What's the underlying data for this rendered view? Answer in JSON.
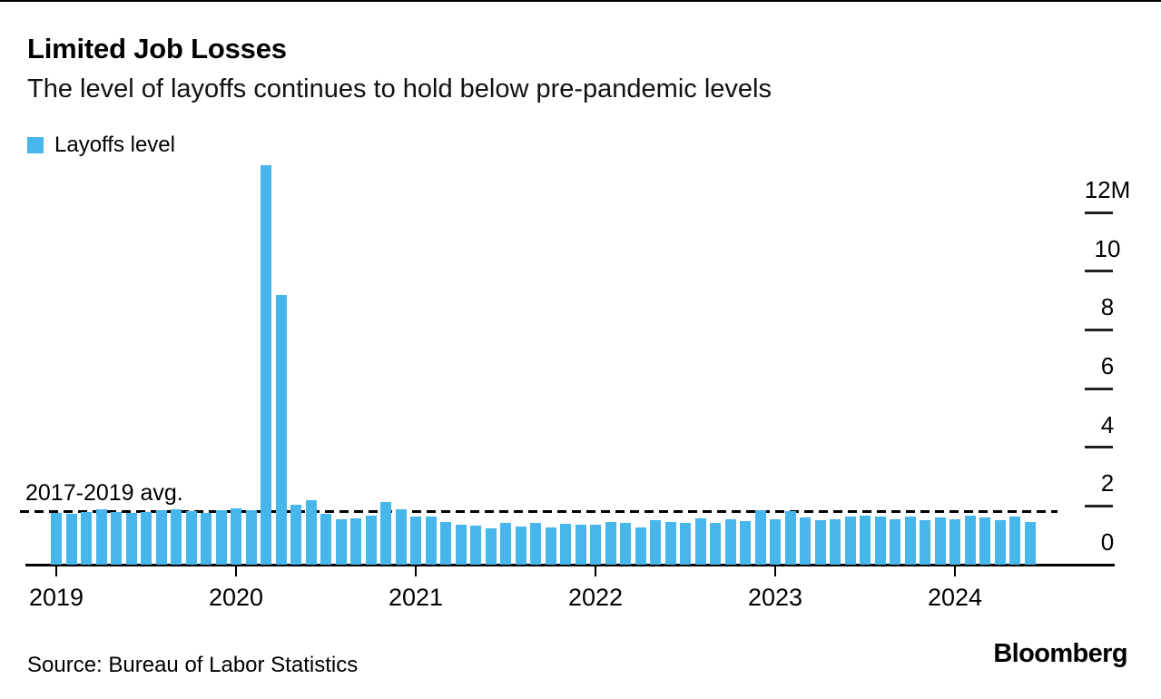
{
  "header": {
    "title": "Limited Job Losses",
    "subtitle": "The level of layoffs continues to hold below pre-pandemic levels"
  },
  "legend": {
    "label": "Layoffs level",
    "swatch_color": "#47b6ea"
  },
  "footer": {
    "source": "Source: Bureau of Labor Statistics",
    "brand": "Bloomberg"
  },
  "colors": {
    "bar": "#47b6ea",
    "axis": "#000000",
    "background": "#ffffff"
  },
  "chart_data": {
    "type": "bar",
    "title": "Limited Job Losses",
    "subtitle": "The level of layoffs continues to hold below pre-pandemic levels",
    "series_name": "Layoffs level",
    "unit": "millions of layoffs per month",
    "grid": false,
    "legend_position": "top-left",
    "ylim": [
      0,
      13.6
    ],
    "y_ticks": {
      "values": [
        12,
        10,
        8,
        6,
        4,
        2,
        0
      ],
      "labels": [
        "12M",
        "10",
        "8",
        "6",
        "4",
        "2",
        "0"
      ]
    },
    "x_ticks": [
      "2019",
      "2020",
      "2021",
      "2022",
      "2023",
      "2024"
    ],
    "avg_line": {
      "label": "2017-2019 avg.",
      "value": 1.8,
      "style": "dashed"
    },
    "categories": [
      "2019-01",
      "2019-02",
      "2019-03",
      "2019-04",
      "2019-05",
      "2019-06",
      "2019-07",
      "2019-08",
      "2019-09",
      "2019-10",
      "2019-11",
      "2019-12",
      "2020-01",
      "2020-02",
      "2020-03",
      "2020-04",
      "2020-05",
      "2020-06",
      "2020-07",
      "2020-08",
      "2020-09",
      "2020-10",
      "2020-11",
      "2020-12",
      "2021-01",
      "2021-02",
      "2021-03",
      "2021-04",
      "2021-05",
      "2021-06",
      "2021-07",
      "2021-08",
      "2021-09",
      "2021-10",
      "2021-11",
      "2021-12",
      "2022-01",
      "2022-02",
      "2022-03",
      "2022-04",
      "2022-05",
      "2022-06",
      "2022-07",
      "2022-08",
      "2022-09",
      "2022-10",
      "2022-11",
      "2022-12",
      "2023-01",
      "2023-02",
      "2023-03",
      "2023-04",
      "2023-05",
      "2023-06",
      "2023-07",
      "2023-08",
      "2023-09",
      "2023-10",
      "2023-11",
      "2023-12",
      "2024-01",
      "2024-02",
      "2024-03",
      "2024-04",
      "2024-05",
      "2024-06"
    ],
    "values": [
      1.75,
      1.73,
      1.79,
      1.88,
      1.8,
      1.77,
      1.8,
      1.87,
      1.88,
      1.82,
      1.76,
      1.85,
      1.92,
      1.86,
      13.6,
      9.2,
      2.05,
      2.2,
      1.74,
      1.56,
      1.58,
      1.68,
      2.12,
      1.9,
      1.64,
      1.64,
      1.46,
      1.37,
      1.33,
      1.25,
      1.43,
      1.31,
      1.43,
      1.28,
      1.39,
      1.37,
      1.37,
      1.46,
      1.41,
      1.28,
      1.52,
      1.46,
      1.43,
      1.58,
      1.43,
      1.55,
      1.49,
      1.86,
      1.55,
      1.83,
      1.61,
      1.52,
      1.55,
      1.64,
      1.67,
      1.64,
      1.55,
      1.64,
      1.52,
      1.6,
      1.55,
      1.67,
      1.6,
      1.52,
      1.64,
      1.46
    ]
  }
}
